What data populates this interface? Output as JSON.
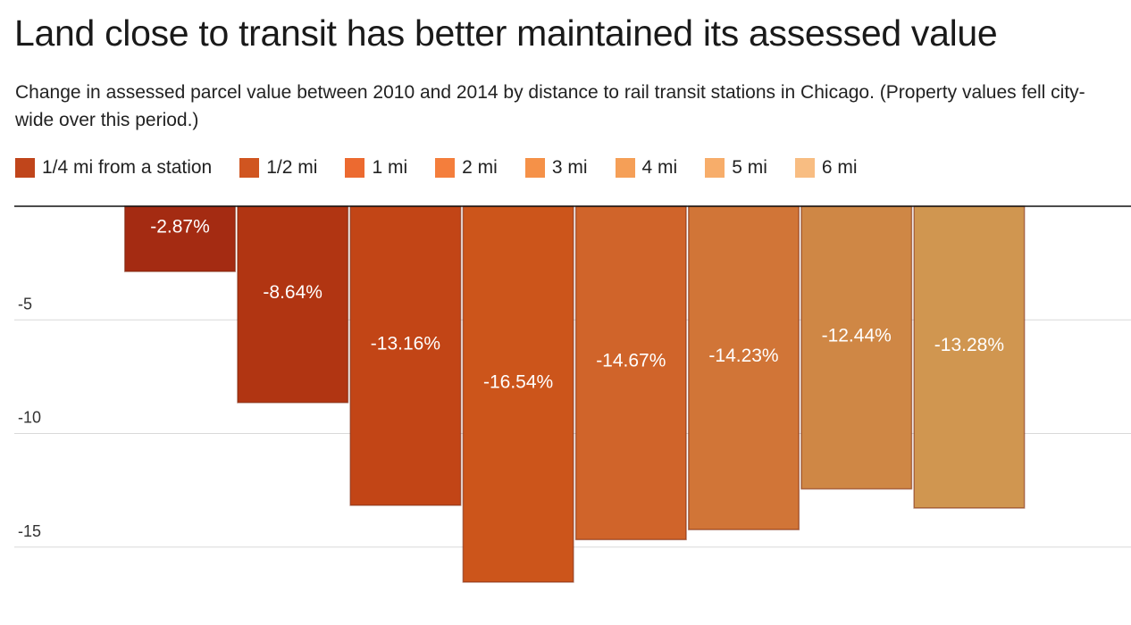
{
  "chart_data": {
    "type": "bar",
    "title": "Land close to transit has better maintained its assessed value",
    "subtitle": "Change in assessed parcel value between 2010 and 2014 by distance to rail transit stations in Chicago. (Property values fell city-wide over this period.)",
    "categories": [
      "1/4 mi from a station",
      "1/2 mi",
      "1 mi",
      "2 mi",
      "3 mi",
      "4 mi",
      "5 mi",
      "6 mi"
    ],
    "values": [
      -2.87,
      -8.64,
      -13.16,
      -16.54,
      -14.67,
      -14.23,
      -12.44,
      -13.28
    ],
    "data_labels": [
      "-2.87%",
      "-8.64%",
      "-13.16%",
      "-16.54%",
      "-14.67%",
      "-14.23%",
      "-12.44%",
      "-13.28%"
    ],
    "colors": [
      "#a42b12",
      "#b13512",
      "#c24516",
      "#cc551b",
      "#d0642a",
      "#d17537",
      "#cf8745",
      "#d09650"
    ],
    "legend_colors": [
      "#c0451b",
      "#d05520",
      "#ec6a30",
      "#f47e3c",
      "#f59148",
      "#f59f57",
      "#f7ad6a",
      "#f8bd82"
    ],
    "ylim": [
      0,
      -17
    ],
    "yticks": [
      -5,
      -10,
      -15
    ],
    "ytick_labels": [
      "-5",
      "-10",
      "-15"
    ],
    "xlabel": "",
    "ylabel": "",
    "grid": true,
    "legend": "top"
  }
}
